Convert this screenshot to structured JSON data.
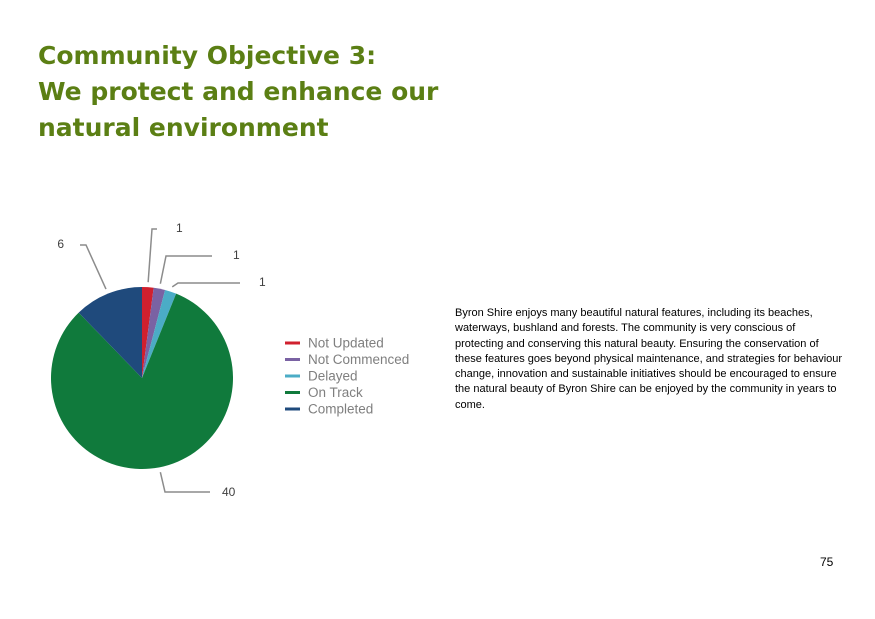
{
  "header": {
    "title": [
      "Community Objective 3:",
      "We protect and enhance our",
      "natural environment"
    ]
  },
  "chart_data": {
    "type": "pie",
    "categories": [
      "Not Updated",
      "Not Commenced",
      "Delayed",
      "On Track",
      "Completed"
    ],
    "values": [
      1,
      1,
      1,
      40,
      6
    ],
    "colors": [
      "#d0202e",
      "#7a62a3",
      "#4bacc6",
      "#107a3c",
      "#1f4a7c"
    ]
  },
  "body": "Byron Shire enjoys many beautiful natural features, including its beaches, waterways, bushland and forests. The community is very conscious of protecting and conserving this natural beauty. Ensuring the conservation of these features goes beyond physical maintenance, and strategies for behaviour change, innovation and sustainable initiatives should be encouraged to ensure the natural beauty of Byron Shire can be enjoyed by the community in years to come.",
  "page_number": "75"
}
